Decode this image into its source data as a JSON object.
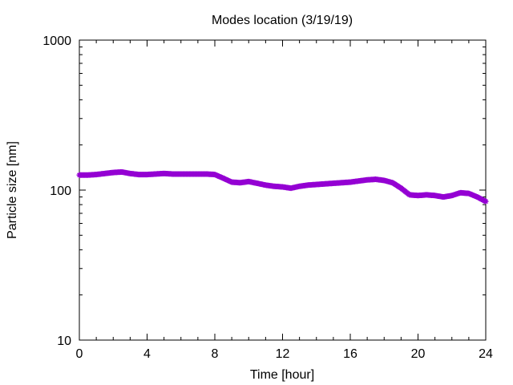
{
  "chart_data": {
    "type": "line",
    "title": "Modes location (3/19/19)",
    "xlabel": "Time [hour]",
    "ylabel": "Particle size [nm]",
    "xlim": [
      0,
      24
    ],
    "ylim": [
      10,
      1000
    ],
    "yscale": "log",
    "grid": false,
    "x_ticks": [
      0,
      4,
      8,
      12,
      16,
      20,
      24
    ],
    "x_tick_labels": [
      "0",
      "4",
      "8",
      "12",
      "16",
      "20",
      "24"
    ],
    "y_ticks": [
      10,
      100,
      1000
    ],
    "y_tick_labels": [
      "10",
      "100",
      "1000"
    ],
    "series": [
      {
        "color": "#9400d3",
        "marker": "star",
        "points": [
          [
            0.0,
            126
          ],
          [
            0.5,
            126
          ],
          [
            1.0,
            127
          ],
          [
            1.5,
            129
          ],
          [
            2.0,
            131
          ],
          [
            2.5,
            132
          ],
          [
            3.0,
            129
          ],
          [
            3.5,
            127
          ],
          [
            4.0,
            127
          ],
          [
            4.5,
            128
          ],
          [
            5.0,
            129
          ],
          [
            5.5,
            128
          ],
          [
            6.0,
            128
          ],
          [
            6.5,
            128
          ],
          [
            7.0,
            128
          ],
          [
            7.5,
            128
          ],
          [
            8.0,
            127
          ],
          [
            8.5,
            120
          ],
          [
            9.0,
            113
          ],
          [
            9.5,
            112
          ],
          [
            10.0,
            114
          ],
          [
            10.5,
            111
          ],
          [
            11.0,
            108
          ],
          [
            11.5,
            106
          ],
          [
            12.0,
            105
          ],
          [
            12.5,
            103
          ],
          [
            13.0,
            106
          ],
          [
            13.5,
            108
          ],
          [
            14.0,
            109
          ],
          [
            14.5,
            110
          ],
          [
            15.0,
            111
          ],
          [
            15.5,
            112
          ],
          [
            16.0,
            113
          ],
          [
            16.5,
            115
          ],
          [
            17.0,
            117
          ],
          [
            17.5,
            118
          ],
          [
            18.0,
            116
          ],
          [
            18.5,
            112
          ],
          [
            19.0,
            103
          ],
          [
            19.5,
            93
          ],
          [
            20.0,
            92
          ],
          [
            20.5,
            93
          ],
          [
            21.0,
            92
          ],
          [
            21.5,
            90
          ],
          [
            22.0,
            92
          ],
          [
            22.5,
            96
          ],
          [
            23.0,
            95
          ],
          [
            23.5,
            90
          ],
          [
            24.0,
            84
          ]
        ]
      }
    ]
  }
}
